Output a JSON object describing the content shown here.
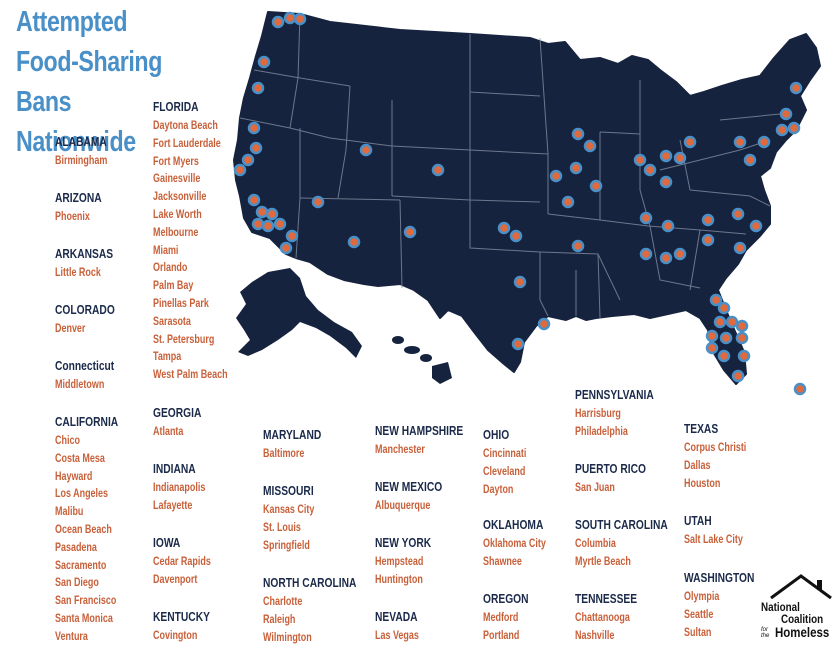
{
  "title": "Attempted Food-Sharing Bans Nationwide",
  "colors": {
    "title": "#4a90c8",
    "map_fill": "#16233f",
    "state_border": "#8a93a6",
    "marker": "#e06a3e",
    "marker_ring": "#4a90c8",
    "state_label": "#1b2a4a",
    "city_label": "#c8603a"
  },
  "logo": {
    "line1": "National",
    "line2": "Coalition",
    "line3": "for the",
    "line4": "Homeless",
    "icon": "house-roof-icon"
  },
  "columns": [
    {
      "id": "col1",
      "blocks": [
        {
          "state": "ALABAMA",
          "cities": [
            "Birmingham"
          ]
        },
        {
          "state": "ARIZONA",
          "cities": [
            "Phoenix"
          ]
        },
        {
          "state": "ARKANSAS",
          "cities": [
            "Little Rock"
          ]
        },
        {
          "state": "COLORADO",
          "cities": [
            "Denver"
          ]
        },
        {
          "state": "Connecticut",
          "cities": [
            "Middletown"
          ]
        },
        {
          "state": "CALIFORNIA",
          "cities": [
            "Chico",
            "Costa Mesa",
            "Hayward",
            "Los Angeles",
            "Malibu",
            "Ocean Beach",
            "Pasadena",
            "Sacramento",
            "San Diego",
            "San Francisco",
            "Santa Monica",
            "Ventura"
          ]
        }
      ]
    },
    {
      "id": "col2",
      "blocks": [
        {
          "state": "FLORIDA",
          "cities": [
            "Daytona Beach",
            "Fort Lauderdale",
            "Fort Myers",
            "Gainesville",
            "Jacksonville",
            "Lake Worth",
            "Melbourne",
            "Miami",
            "Orlando",
            "Palm Bay",
            "Pinellas Park",
            "Sarasota",
            "St. Petersburg",
            "Tampa",
            "West Palm Beach"
          ]
        },
        {
          "state": "GEORGIA",
          "cities": [
            "Atlanta"
          ]
        },
        {
          "state": "INDIANA",
          "cities": [
            "Indianapolis",
            "Lafayette"
          ]
        },
        {
          "state": "IOWA",
          "cities": [
            "Cedar Rapids",
            "Davenport"
          ]
        },
        {
          "state": "KENTUCKY",
          "cities": [
            "Covington"
          ]
        }
      ]
    },
    {
      "id": "col3",
      "blocks": [
        {
          "state": "MARYLAND",
          "cities": [
            "Baltimore"
          ]
        },
        {
          "state": "MISSOURI",
          "cities": [
            "Kansas City",
            "St. Louis",
            "Springfield"
          ]
        },
        {
          "state": "NORTH CAROLINA",
          "cities": [
            "Charlotte",
            "Raleigh",
            "Wilmington"
          ]
        }
      ]
    },
    {
      "id": "col4",
      "blocks": [
        {
          "state": "NEW HAMPSHIRE",
          "cities": [
            "Manchester"
          ]
        },
        {
          "state": "NEW MEXICO",
          "cities": [
            "Albuquerque"
          ]
        },
        {
          "state": "NEW YORK",
          "cities": [
            "Hempstead",
            "Huntington"
          ]
        },
        {
          "state": "NEVADA",
          "cities": [
            "Las Vegas"
          ]
        }
      ]
    },
    {
      "id": "col5",
      "blocks": [
        {
          "state": "OHIO",
          "cities": [
            "Cincinnati",
            "Cleveland",
            "Dayton"
          ]
        },
        {
          "state": "OKLAHOMA",
          "cities": [
            "Oklahoma City",
            "Shawnee"
          ]
        },
        {
          "state": "OREGON",
          "cities": [
            "Medford",
            "Portland"
          ]
        }
      ]
    },
    {
      "id": "col6",
      "blocks": [
        {
          "state": "PENNSYLVANIA",
          "cities": [
            "Harrisburg",
            "Philadelphia"
          ]
        },
        {
          "state": "PUERTO RICO",
          "cities": [
            "San Juan"
          ]
        },
        {
          "state": "SOUTH CAROLINA",
          "cities": [
            "Columbia",
            "Myrtle Beach"
          ]
        },
        {
          "state": "TENNESSEE",
          "cities": [
            "Chattanooga",
            "Nashville"
          ]
        }
      ]
    },
    {
      "id": "col7",
      "blocks": [
        {
          "state": "TEXAS",
          "cities": [
            "Corpus Christi",
            "Dallas",
            "Houston"
          ]
        },
        {
          "state": "UTAH",
          "cities": [
            "Salt Lake City"
          ]
        },
        {
          "state": "WASHINGTON",
          "cities": [
            "Olympia",
            "Seattle",
            "Sultan"
          ]
        }
      ]
    }
  ]
}
